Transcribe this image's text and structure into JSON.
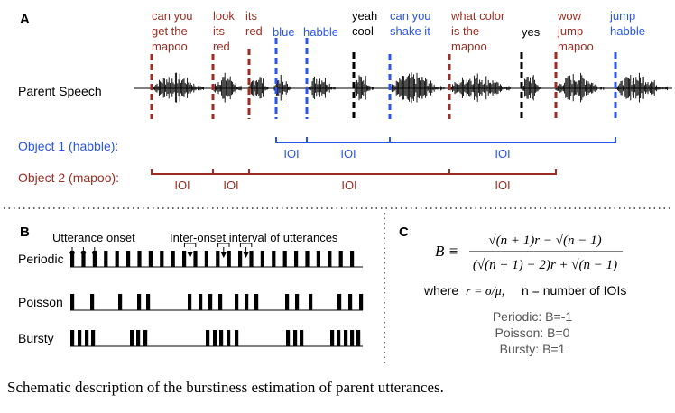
{
  "colors": {
    "red": "#9b2d23",
    "blue": "#2b55e6",
    "black": "#000000",
    "gray": "#555555"
  },
  "panel_a": {
    "label": "A",
    "track_label": "Parent Speech",
    "utterances": [
      {
        "lines": [
          "can you",
          "get the",
          "mapoo"
        ],
        "color": "red"
      },
      {
        "lines": [
          "look",
          "its",
          "red"
        ],
        "color": "red"
      },
      {
        "lines": [
          "its",
          "red"
        ],
        "color": "red"
      },
      {
        "lines": [
          "blue"
        ],
        "color": "blue"
      },
      {
        "lines": [
          "habble"
        ],
        "color": "blue"
      },
      {
        "lines": [
          "yeah",
          "cool"
        ],
        "color": "black"
      },
      {
        "lines": [
          "can you",
          "shake it"
        ],
        "color": "blue"
      },
      {
        "lines": [
          "what color",
          "is the",
          "mapoo"
        ],
        "color": "red"
      },
      {
        "lines": [
          "yes"
        ],
        "color": "black"
      },
      {
        "lines": [
          "wow",
          "jump",
          "mapoo"
        ],
        "color": "red"
      },
      {
        "lines": [
          "jump",
          "habble"
        ],
        "color": "blue"
      }
    ],
    "object1_label": "Object 1 (habble):",
    "object2_label": "Object 2 (mapoo):",
    "ioi_label": "IOI"
  },
  "panel_b": {
    "label": "B",
    "utterance_onset_label": "Utterance onset",
    "ioi_label": "Inter-onset interval of utterances",
    "rows": [
      "Periodic",
      "Poisson",
      "Bursty"
    ]
  },
  "panel_c": {
    "label": "C",
    "formula_lhs": "B ≡",
    "numerator": "√(n + 1)r − √(n − 1)",
    "denominator": "(√(n + 1) − 2)r + √(n − 1)",
    "where_prefix": "where",
    "r_def": "r = σ/μ,",
    "n_def": "n = number of IOIs",
    "results": [
      "Periodic: B=-1",
      "Poisson: B=0",
      "Bursty: B=1"
    ]
  },
  "caption": "Schematic description of the burstiness estimation of parent utterances."
}
